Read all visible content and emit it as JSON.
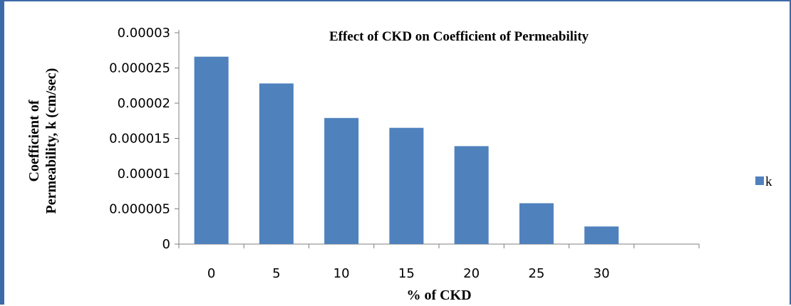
{
  "chart_data": {
    "type": "bar",
    "title": "Effect of CKD on Coefficient of Permeability",
    "xlabel": "% of CKD",
    "ylabel_line1": "Coefficient of",
    "ylabel_line2": "Permeability, k (cm/sec)",
    "categories": [
      "0",
      "5",
      "10",
      "15",
      "20",
      "25",
      "30",
      ""
    ],
    "series": [
      {
        "name": "k",
        "color": "#4f81bd",
        "values": [
          2.66e-05,
          2.28e-05,
          1.79e-05,
          1.65e-05,
          1.39e-05,
          5.8e-06,
          2.5e-06,
          null
        ]
      }
    ],
    "ylim": [
      0,
      3e-05
    ],
    "yticks": [
      0,
      5e-06,
      1e-05,
      1.5e-05,
      2e-05,
      2.5e-05,
      3e-05
    ],
    "ytick_labels": [
      "0",
      "0.000005",
      "0.00001",
      "0.000015",
      "0.00002",
      "0.000025",
      "0.00003"
    ],
    "grid": false,
    "legend": "right"
  }
}
